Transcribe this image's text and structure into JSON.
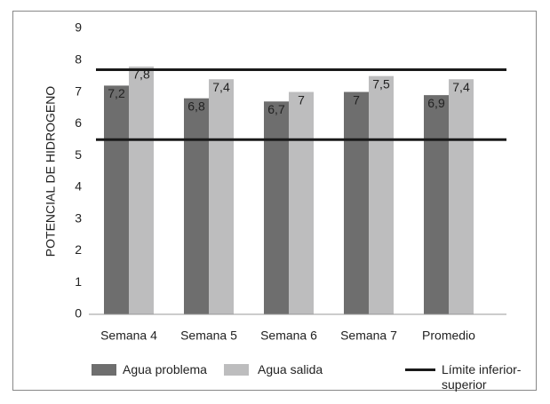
{
  "chart_data": {
    "type": "bar",
    "y_label": "POTENCIAL DE HIDROGENO",
    "categories": [
      "Semana 4",
      "Semana 5",
      "Semana 6",
      "Semana 7",
      "Promedio"
    ],
    "series": [
      {
        "name": "Agua problema",
        "color": "#6e6e6e",
        "values": [
          7.2,
          6.8,
          6.7,
          7,
          6.9
        ],
        "value_labels": [
          "7,2",
          "6,8",
          "6,7",
          "7",
          "6,9"
        ]
      },
      {
        "name": "Agua salida",
        "color": "#bdbdbe",
        "values": [
          7.8,
          7.4,
          7,
          7.5,
          7.4
        ],
        "value_labels": [
          "7,8",
          "7,4",
          "7",
          "7,5",
          "7,4"
        ]
      }
    ],
    "reference_lines": {
      "name": "Límite inferior-superior",
      "color": "#1a1a1a",
      "values": [
        5.5,
        7.7
      ]
    },
    "ylim": [
      0,
      9
    ],
    "yticks": [
      0,
      1,
      2,
      3,
      4,
      5,
      6,
      7,
      8,
      9
    ]
  }
}
